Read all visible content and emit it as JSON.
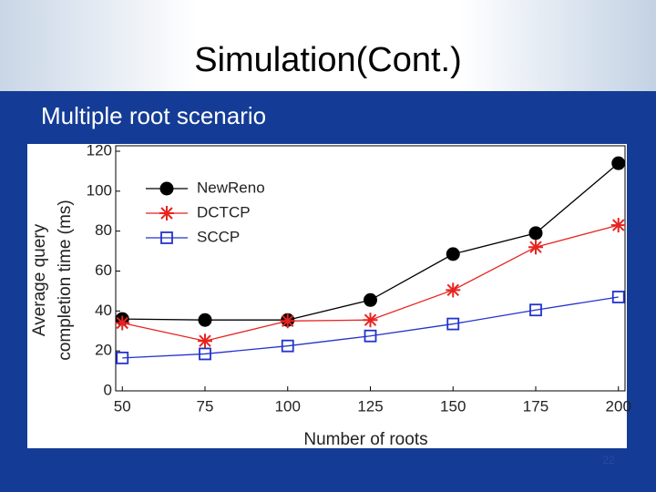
{
  "slide_title": "Simulation(Cont.)",
  "subtitle": "Multiple root scenario",
  "page_number": "22",
  "chart_data": {
    "type": "line",
    "x_label": "Number of roots",
    "y_label": [
      "Average query",
      "completion time (ms)"
    ],
    "x": [
      50,
      75,
      100,
      125,
      150,
      175,
      200
    ],
    "series": [
      {
        "name": "NewReno",
        "color": "#000000",
        "marker": "circle",
        "values": [
          36,
          35.5,
          35.5,
          45.5,
          68.5,
          79,
          114
        ]
      },
      {
        "name": "DCTCP",
        "color": "#e8231f",
        "marker": "asterisk",
        "values": [
          34,
          25,
          35,
          35.5,
          50.5,
          72,
          83
        ]
      },
      {
        "name": "SCCP",
        "color": "#2233cc",
        "marker": "square",
        "values": [
          16.5,
          18.5,
          22.5,
          27.5,
          33.5,
          40.5,
          47
        ]
      }
    ],
    "xlim": [
      48,
      202
    ],
    "ylim": [
      0,
      120
    ],
    "xticks": [
      50,
      75,
      100,
      125,
      150,
      175,
      200
    ],
    "yticks": [
      0,
      20,
      40,
      60,
      80,
      100,
      120
    ],
    "legend": "upper left"
  }
}
